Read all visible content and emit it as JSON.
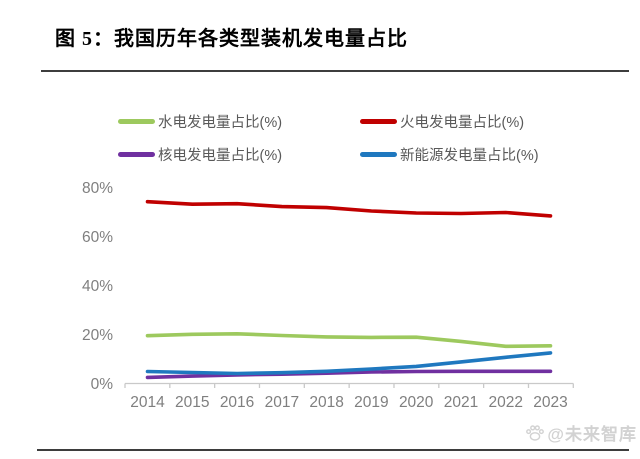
{
  "page": {
    "title": "图 5：我国历年各类型装机发电量占比",
    "watermark": "@未来智库"
  },
  "chart_data": {
    "type": "line",
    "title": "我国历年各类型装机发电量占比",
    "x": [
      "2014",
      "2015",
      "2016",
      "2017",
      "2018",
      "2019",
      "2020",
      "2021",
      "2022",
      "2023"
    ],
    "series": [
      {
        "name": "水电发电量占比(%)",
        "color": "#9dc95e",
        "values": [
          19.5,
          20.1,
          20.3,
          19.6,
          19.0,
          18.8,
          18.9,
          17.2,
          15.2,
          15.4
        ]
      },
      {
        "name": "火电发电量占比(%)",
        "color": "#c00000",
        "values": [
          74.2,
          73.2,
          73.4,
          72.2,
          71.8,
          70.4,
          69.6,
          69.4,
          69.8,
          68.4
        ]
      },
      {
        "name": "核电发电量占比(%)",
        "color": "#7030a0",
        "values": [
          2.5,
          3.0,
          3.5,
          3.8,
          4.2,
          4.7,
          4.9,
          5.0,
          5.0,
          5.0
        ]
      },
      {
        "name": "新能源发电量占比(%)",
        "color": "#1f78bf",
        "values": [
          4.9,
          4.5,
          4.1,
          4.4,
          5.0,
          5.9,
          7.0,
          8.8,
          10.7,
          12.5
        ]
      }
    ],
    "ylim": [
      0,
      80
    ],
    "yticks": [
      "0%",
      "20%",
      "40%",
      "60%",
      "80%"
    ],
    "ytick_step": 20,
    "grid": false,
    "legend_position": "top",
    "axis_color": "#c9c9c9",
    "tick_label_color": "#7f7f7f"
  }
}
